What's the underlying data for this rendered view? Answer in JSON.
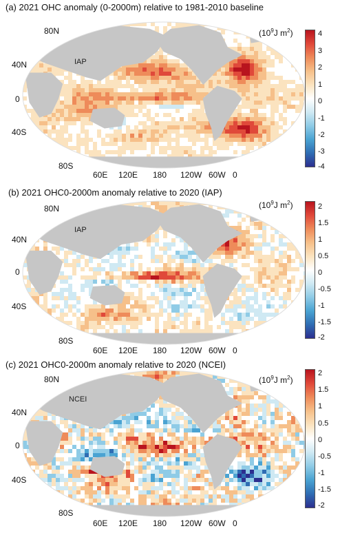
{
  "panels": [
    {
      "title": "(a)  2021 OHC anomaly (0-2000m) relative to 1981-2010 baseline",
      "source": "IAP",
      "unit_base": "(10",
      "unit_exp": "9",
      "unit_tail": "J m",
      "unit_exp2": "2",
      "unit_close": ")",
      "lat_labels": [
        "80N",
        "40N",
        "0",
        "40S",
        "80S"
      ],
      "lon_labels": [
        "60E",
        "120E",
        "180",
        "120W",
        "60W",
        "0"
      ],
      "colorbar_ticks": [
        "4",
        "3",
        "2",
        "1",
        "0",
        "-1",
        "-2",
        "-3",
        "-4"
      ]
    },
    {
      "title": "(b)  2021 OHC0-2000m anomaly relative to 2020 (IAP)",
      "source": "IAP",
      "unit_base": "(10",
      "unit_exp": "9",
      "unit_tail": "J m",
      "unit_exp2": "2",
      "unit_close": ")",
      "lat_labels": [
        "80N",
        "40N",
        "0",
        "40S",
        "80S"
      ],
      "lon_labels": [
        "60E",
        "120E",
        "180",
        "120W",
        "60W",
        "0"
      ],
      "colorbar_ticks": [
        "2",
        "1.5",
        "1",
        "0.5",
        "0",
        "-0.5",
        "-1",
        "-1.5",
        "-2"
      ]
    },
    {
      "title": "(c)  2021 OHC0-2000m anomaly relative to 2020 (NCEI)",
      "source": "NCEI",
      "unit_base": "(10",
      "unit_exp": "9",
      "unit_tail": "J m",
      "unit_exp2": "2",
      "unit_close": ")",
      "lat_labels": [
        "80N",
        "40N",
        "0",
        "40S",
        "80S"
      ],
      "lon_labels": [
        "60E",
        "120E",
        "180",
        "120W",
        "60W",
        "0"
      ],
      "colorbar_ticks": [
        "2",
        "1.5",
        "1",
        "0.5",
        "0",
        "-0.5",
        "-1",
        "-1.5",
        "-2"
      ]
    }
  ],
  "colors": {
    "land": "#c6c6c6",
    "colormap": [
      "#2c2f8f",
      "#2f6db3",
      "#4aa3d2",
      "#8fcbe6",
      "#cfe9f3",
      "#ffffff",
      "#fbe3bf",
      "#f6c08a",
      "#ee8b5a",
      "#e0493a",
      "#b8141e"
    ]
  }
}
